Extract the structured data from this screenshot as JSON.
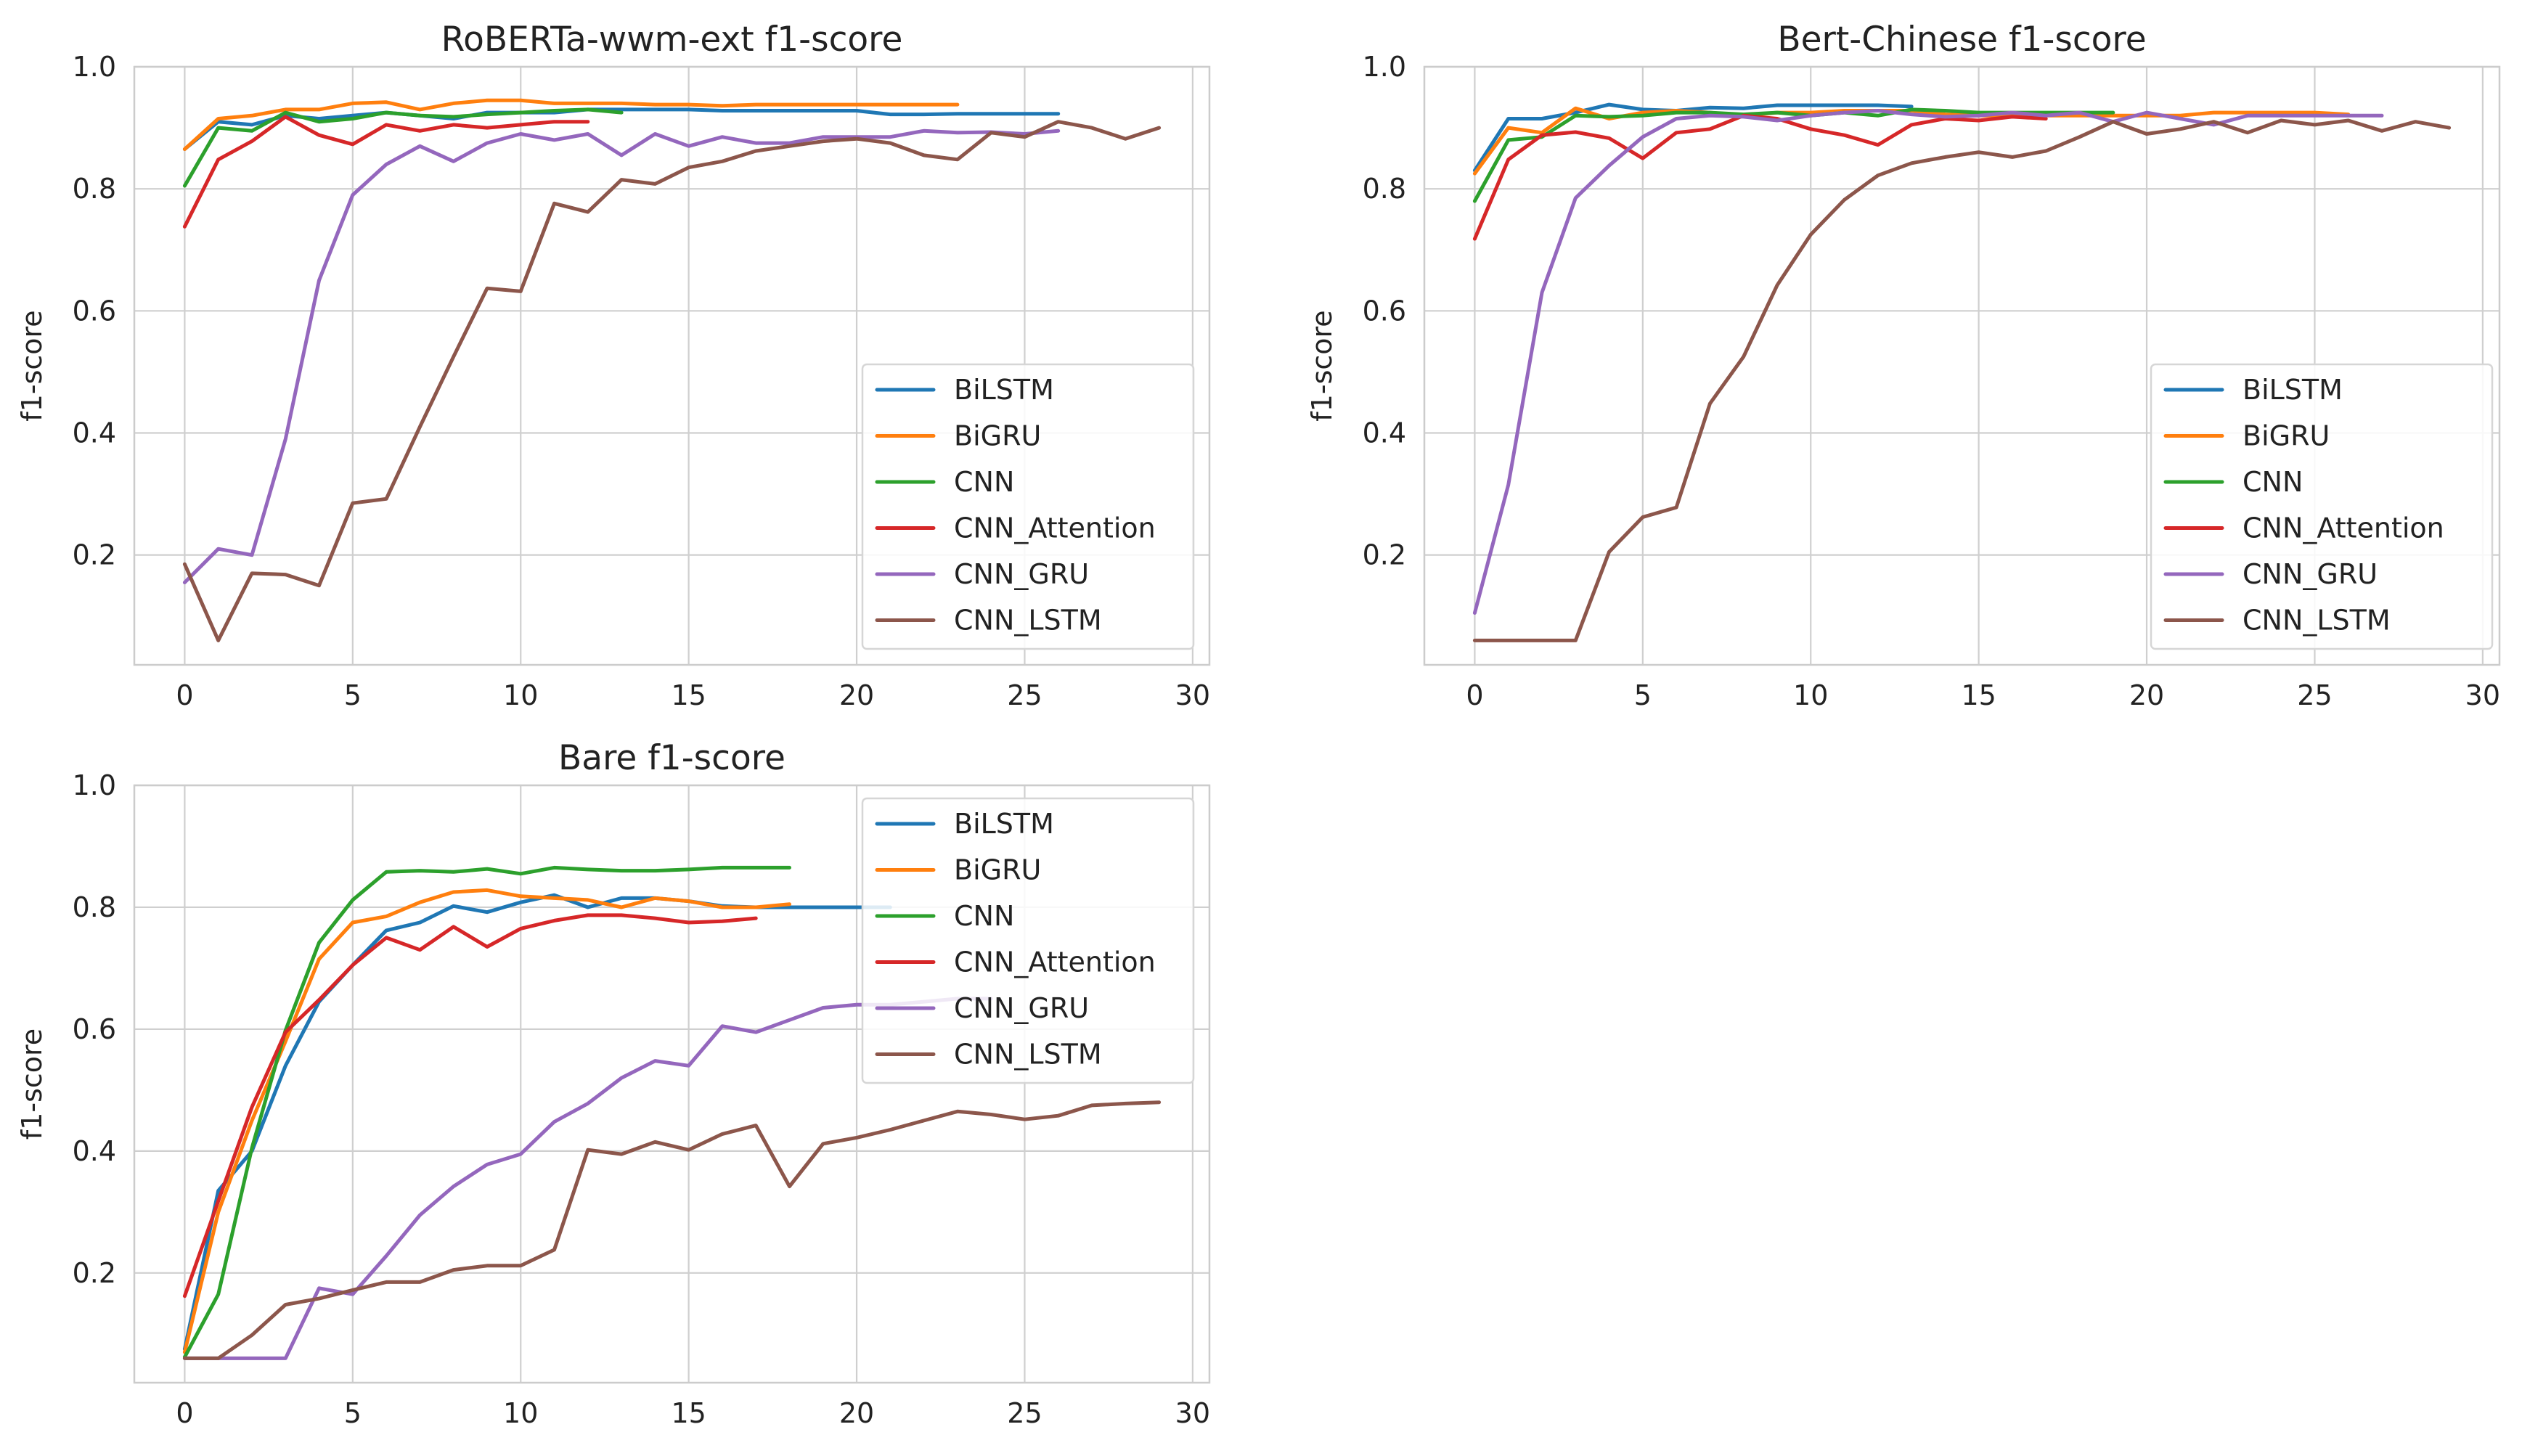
{
  "chart_data": [
    {
      "type": "line",
      "title": "RoBERTa-wwm-ext f1-score",
      "xlabel": "",
      "ylabel": "f1-score",
      "xlim": [
        -1.5,
        30.5
      ],
      "ylim": [
        0.02,
        1.0
      ],
      "xticks": [
        0,
        5,
        10,
        15,
        20,
        25,
        30
      ],
      "yticks": [
        0.2,
        0.4,
        0.6,
        0.8,
        1.0
      ],
      "xtick_labels": [
        "0",
        "5",
        "10",
        "15",
        "20",
        "25",
        "30"
      ],
      "ytick_labels": [
        "0.2",
        "0.4",
        "0.6",
        "0.8",
        "1.0"
      ],
      "grid": true,
      "legend_position": "lower-right",
      "series": [
        {
          "name": "BiLSTM",
          "color": "#1f77b4",
          "values": [
            0.865,
            0.91,
            0.905,
            0.92,
            0.915,
            0.92,
            0.925,
            0.92,
            0.915,
            0.925,
            0.925,
            0.925,
            0.93,
            0.93,
            0.93,
            0.93,
            0.928,
            0.928,
            0.928,
            0.928,
            0.928,
            0.922,
            0.922,
            0.923,
            0.923,
            0.923,
            0.923
          ]
        },
        {
          "name": "BiGRU",
          "color": "#ff7f0e",
          "values": [
            0.865,
            0.915,
            0.92,
            0.93,
            0.93,
            0.94,
            0.942,
            0.93,
            0.94,
            0.945,
            0.945,
            0.94,
            0.94,
            0.94,
            0.938,
            0.938,
            0.936,
            0.938,
            0.938,
            0.938,
            0.938,
            0.938,
            0.938,
            0.938
          ]
        },
        {
          "name": "CNN",
          "color": "#2ca02c",
          "values": [
            0.805,
            0.9,
            0.895,
            0.925,
            0.91,
            0.915,
            0.925,
            0.92,
            0.918,
            0.922,
            0.925,
            0.928,
            0.93,
            0.925
          ]
        },
        {
          "name": "CNN_Attention",
          "color": "#d62728",
          "values": [
            0.738,
            0.848,
            0.878,
            0.918,
            0.888,
            0.873,
            0.905,
            0.895,
            0.905,
            0.9,
            0.905,
            0.91,
            0.91
          ]
        },
        {
          "name": "CNN_GRU",
          "color": "#9467bd",
          "values": [
            0.155,
            0.21,
            0.2,
            0.39,
            0.65,
            0.79,
            0.84,
            0.87,
            0.845,
            0.875,
            0.89,
            0.88,
            0.89,
            0.855,
            0.89,
            0.87,
            0.885,
            0.875,
            0.875,
            0.885,
            0.885,
            0.885,
            0.895,
            0.892,
            0.893,
            0.89,
            0.895
          ]
        },
        {
          "name": "CNN_LSTM",
          "color": "#8c564b",
          "values": [
            0.185,
            0.06,
            0.17,
            0.168,
            0.15,
            0.285,
            0.292,
            0.41,
            0.525,
            0.637,
            0.632,
            0.776,
            0.762,
            0.815,
            0.808,
            0.835,
            0.845,
            0.862,
            0.87,
            0.878,
            0.882,
            0.875,
            0.855,
            0.848,
            0.892,
            0.885,
            0.91,
            0.9,
            0.882,
            0.9
          ]
        }
      ]
    },
    {
      "type": "line",
      "title": "Bert-Chinese f1-score",
      "xlabel": "",
      "ylabel": "f1-score",
      "xlim": [
        -1.5,
        30.5
      ],
      "ylim": [
        0.02,
        1.0
      ],
      "xticks": [
        0,
        5,
        10,
        15,
        20,
        25,
        30
      ],
      "yticks": [
        0.2,
        0.4,
        0.6,
        0.8,
        1.0
      ],
      "xtick_labels": [
        "0",
        "5",
        "10",
        "15",
        "20",
        "25",
        "30"
      ],
      "ytick_labels": [
        "0.2",
        "0.4",
        "0.6",
        "0.8",
        "1.0"
      ],
      "grid": true,
      "legend_position": "lower-right",
      "series": [
        {
          "name": "BiLSTM",
          "color": "#1f77b4",
          "values": [
            0.83,
            0.915,
            0.915,
            0.925,
            0.938,
            0.93,
            0.928,
            0.933,
            0.932,
            0.937,
            0.937,
            0.937,
            0.937,
            0.935
          ]
        },
        {
          "name": "BiGRU",
          "color": "#ff7f0e",
          "values": [
            0.825,
            0.9,
            0.892,
            0.932,
            0.915,
            0.925,
            0.928,
            0.925,
            0.92,
            0.925,
            0.925,
            0.928,
            0.928,
            0.928,
            0.922,
            0.92,
            0.92,
            0.92,
            0.92,
            0.92,
            0.92,
            0.92,
            0.925,
            0.925,
            0.925,
            0.925,
            0.922
          ]
        },
        {
          "name": "CNN",
          "color": "#2ca02c",
          "values": [
            0.78,
            0.88,
            0.885,
            0.92,
            0.918,
            0.92,
            0.925,
            0.925,
            0.922,
            0.925,
            0.92,
            0.925,
            0.92,
            0.93,
            0.928,
            0.925,
            0.925,
            0.925,
            0.925,
            0.925
          ]
        },
        {
          "name": "CNN_Attention",
          "color": "#d62728",
          "values": [
            0.718,
            0.848,
            0.888,
            0.893,
            0.883,
            0.85,
            0.892,
            0.898,
            0.92,
            0.915,
            0.898,
            0.888,
            0.872,
            0.905,
            0.915,
            0.912,
            0.918,
            0.915
          ]
        },
        {
          "name": "CNN_GRU",
          "color": "#9467bd",
          "values": [
            0.105,
            0.315,
            0.63,
            0.785,
            0.838,
            0.885,
            0.915,
            0.92,
            0.918,
            0.912,
            0.92,
            0.925,
            0.928,
            0.922,
            0.918,
            0.92,
            0.925,
            0.92,
            0.925,
            0.91,
            0.925,
            0.915,
            0.905,
            0.92,
            0.92,
            0.92,
            0.92,
            0.92
          ]
        },
        {
          "name": "CNN_LSTM",
          "color": "#8c564b",
          "values": [
            0.06,
            0.06,
            0.06,
            0.06,
            0.205,
            0.262,
            0.278,
            0.448,
            0.525,
            0.642,
            0.725,
            0.782,
            0.822,
            0.842,
            0.852,
            0.86,
            0.852,
            0.862,
            0.885,
            0.91,
            0.89,
            0.898,
            0.91,
            0.892,
            0.912,
            0.905,
            0.912,
            0.895,
            0.91,
            0.9
          ]
        }
      ]
    },
    {
      "type": "line",
      "title": "Bare f1-score",
      "xlabel": "",
      "ylabel": "f1-score",
      "xlim": [
        -1.5,
        30.5
      ],
      "ylim": [
        0.02,
        1.0
      ],
      "xticks": [
        0,
        5,
        10,
        15,
        20,
        25,
        30
      ],
      "yticks": [
        0.2,
        0.4,
        0.6,
        0.8,
        1.0
      ],
      "xtick_labels": [
        "0",
        "5",
        "10",
        "15",
        "20",
        "25",
        "30"
      ],
      "ytick_labels": [
        "0.2",
        "0.4",
        "0.6",
        "0.8",
        "1.0"
      ],
      "grid": true,
      "legend_position": "upper-right",
      "series": [
        {
          "name": "BiLSTM",
          "color": "#1f77b4",
          "values": [
            0.075,
            0.335,
            0.4,
            0.54,
            0.645,
            0.705,
            0.762,
            0.775,
            0.802,
            0.792,
            0.808,
            0.82,
            0.8,
            0.815,
            0.815,
            0.81,
            0.802,
            0.8,
            0.8,
            0.8,
            0.8,
            0.8
          ]
        },
        {
          "name": "BiGRU",
          "color": "#ff7f0e",
          "values": [
            0.07,
            0.3,
            0.45,
            0.58,
            0.715,
            0.775,
            0.785,
            0.808,
            0.825,
            0.828,
            0.818,
            0.815,
            0.812,
            0.8,
            0.815,
            0.81,
            0.8,
            0.8,
            0.805
          ]
        },
        {
          "name": "CNN",
          "color": "#2ca02c",
          "values": [
            0.062,
            0.165,
            0.405,
            0.598,
            0.742,
            0.812,
            0.858,
            0.86,
            0.858,
            0.863,
            0.855,
            0.865,
            0.862,
            0.86,
            0.86,
            0.862,
            0.865,
            0.865,
            0.865
          ]
        },
        {
          "name": "CNN_Attention",
          "color": "#d62728",
          "values": [
            0.162,
            0.318,
            0.472,
            0.595,
            0.648,
            0.705,
            0.75,
            0.73,
            0.768,
            0.735,
            0.765,
            0.778,
            0.787,
            0.787,
            0.782,
            0.775,
            0.777,
            0.782
          ]
        },
        {
          "name": "CNN_GRU",
          "color": "#9467bd",
          "values": [
            0.06,
            0.06,
            0.06,
            0.06,
            0.175,
            0.165,
            0.228,
            0.295,
            0.342,
            0.378,
            0.395,
            0.448,
            0.478,
            0.52,
            0.548,
            0.54,
            0.605,
            0.595,
            0.615,
            0.635,
            0.64,
            0.64,
            0.645,
            0.65,
            0.65
          ]
        },
        {
          "name": "CNN_LSTM",
          "color": "#8c564b",
          "values": [
            0.06,
            0.06,
            0.098,
            0.148,
            0.158,
            0.172,
            0.185,
            0.185,
            0.205,
            0.212,
            0.212,
            0.238,
            0.402,
            0.395,
            0.415,
            0.402,
            0.428,
            0.442,
            0.342,
            0.412,
            0.422,
            0.435,
            0.45,
            0.465,
            0.46,
            0.452,
            0.458,
            0.475,
            0.478,
            0.48
          ]
        }
      ]
    }
  ]
}
